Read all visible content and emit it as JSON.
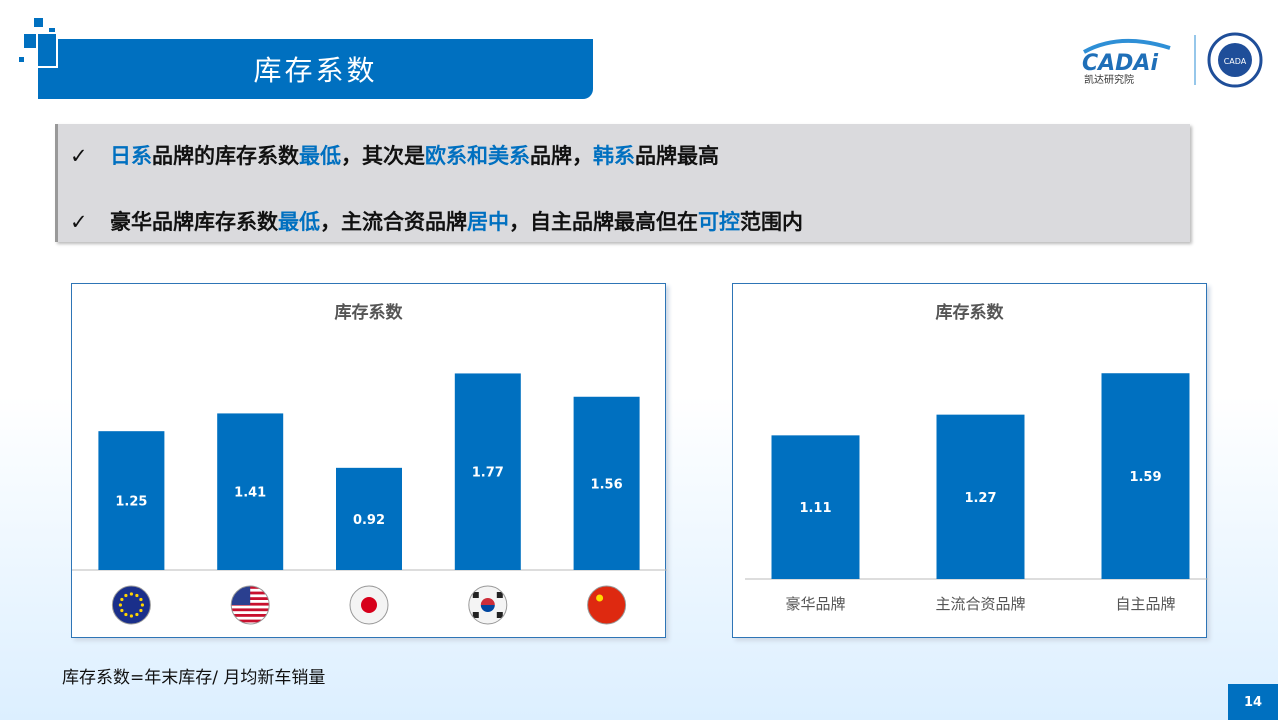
{
  "header": {
    "title": "库存系数",
    "logo_text": "CADAi",
    "logo_sub": "凯达研究院"
  },
  "notes": [
    {
      "parts": [
        {
          "t": "日系",
          "h": true
        },
        {
          "t": "品牌的库存系数",
          "h": false
        },
        {
          "t": "最低",
          "h": true
        },
        {
          "t": "，其次是",
          "h": false
        },
        {
          "t": "欧系和美系",
          "h": true
        },
        {
          "t": "品牌，",
          "h": false
        },
        {
          "t": "韩系",
          "h": true
        },
        {
          "t": "品牌最高",
          "h": false
        }
      ]
    },
    {
      "parts": [
        {
          "t": "豪华品牌库存系数",
          "h": false
        },
        {
          "t": "最低",
          "h": true
        },
        {
          "t": "，主流合资品牌",
          "h": false
        },
        {
          "t": "居中",
          "h": true
        },
        {
          "t": "，自主品牌最高但在",
          "h": false
        },
        {
          "t": "可控",
          "h": true
        },
        {
          "t": "范围内",
          "h": false
        }
      ]
    }
  ],
  "check_icon": "✓",
  "colors": {
    "accent": "#0070c0"
  },
  "chart_data": [
    {
      "type": "bar",
      "title": "库存系数",
      "categories": [
        "eu-flag",
        "us-flag",
        "japan-flag",
        "korea-flag",
        "china-flag"
      ],
      "values": [
        1.25,
        1.41,
        0.92,
        1.77,
        1.56
      ],
      "ylim": [
        0,
        1.9
      ]
    },
    {
      "type": "bar",
      "title": "库存系数",
      "categories": [
        "豪华品牌",
        "主流合资品牌",
        "自主品牌"
      ],
      "values": [
        1.11,
        1.27,
        1.59
      ],
      "ylim": [
        0,
        1.7
      ]
    }
  ],
  "footnote": "库存系数=年末库存/ 月均新车销量",
  "page_number": "14"
}
